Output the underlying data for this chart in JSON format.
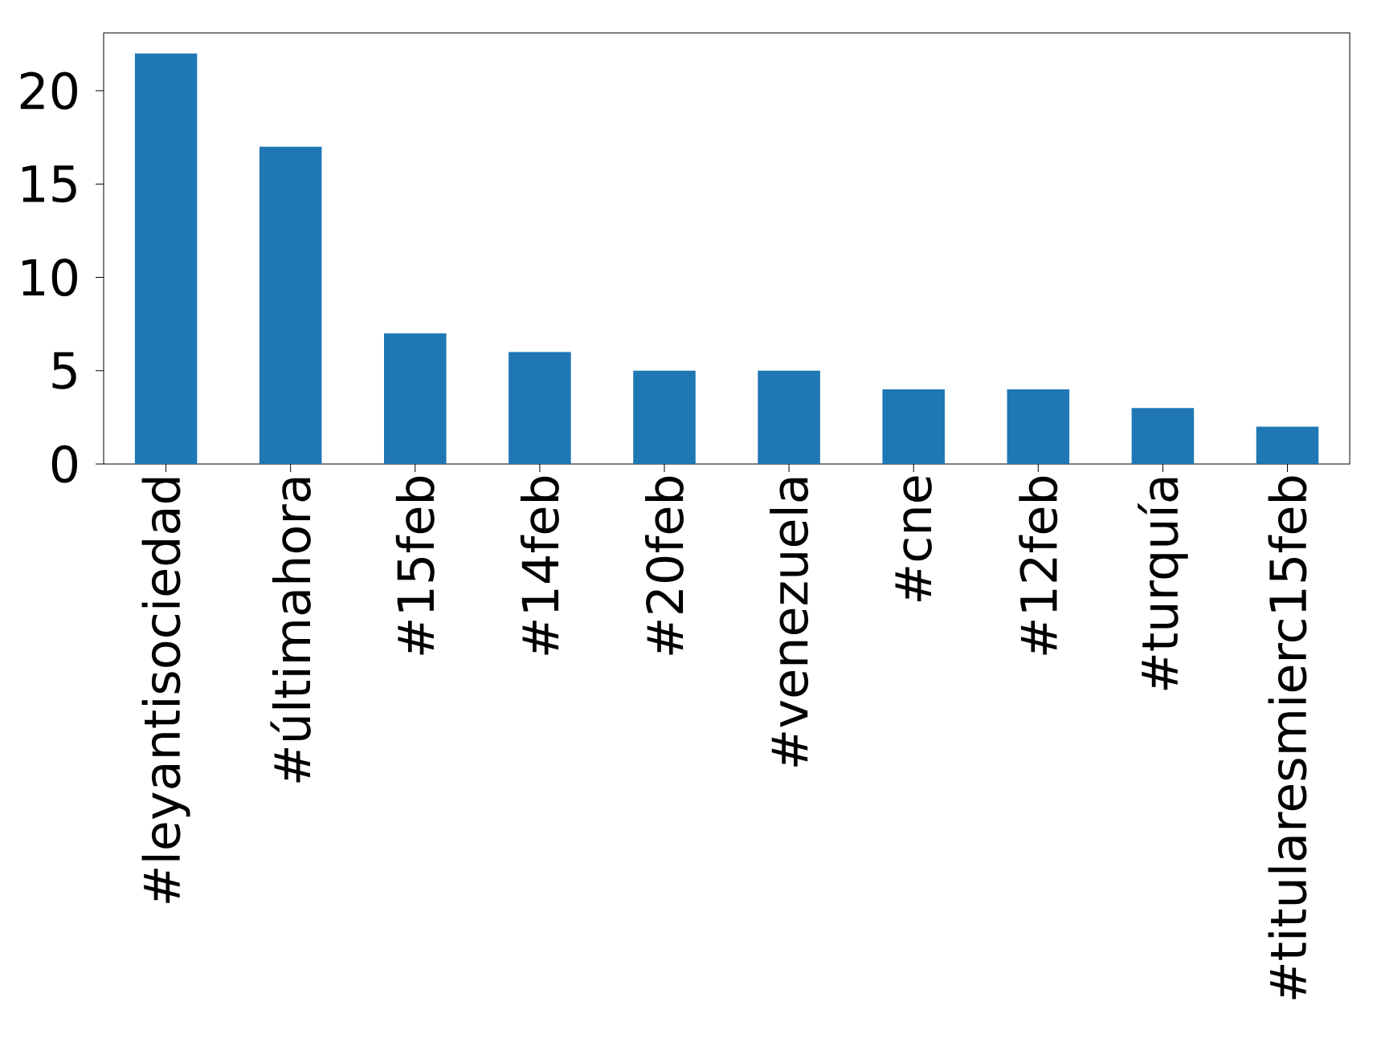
{
  "chart_data": {
    "type": "bar",
    "categories": [
      "#leyantisociedad",
      "#últimahora",
      "#15feb",
      "#14feb",
      "#20feb",
      "#venezuela",
      "#cne",
      "#12feb",
      "#turquía",
      "#titularesmierc15feb"
    ],
    "values": [
      22,
      17,
      7,
      6,
      5,
      5,
      4,
      4,
      3,
      2
    ],
    "color": "#1f77b4",
    "ylim": [
      0,
      23.1
    ],
    "yticks": [
      0,
      5,
      10,
      15,
      20
    ],
    "grid": false
  }
}
